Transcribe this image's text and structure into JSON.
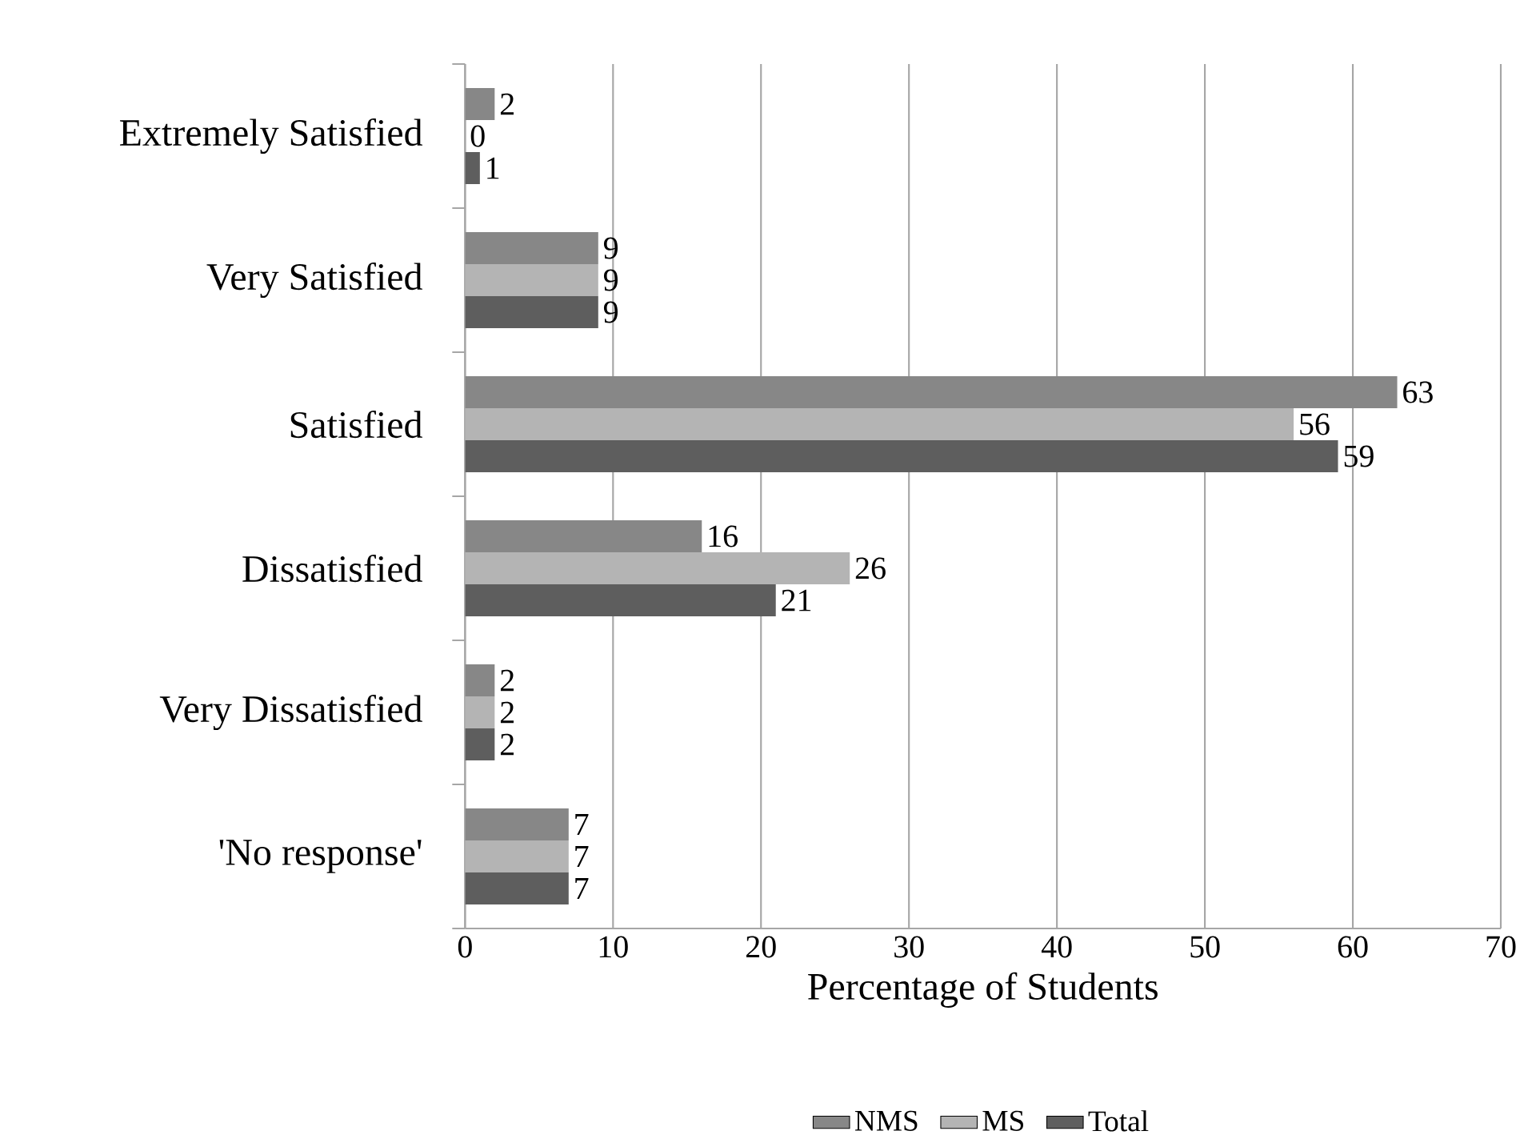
{
  "chart_data": {
    "type": "bar",
    "orientation": "horizontal",
    "xlabel": "Percentage of Students",
    "categories": [
      "Extremely Satisfied",
      "Very Satisfied",
      "Satisfied",
      "Dissatisfied",
      "Very Dissatisfied",
      "'No response'"
    ],
    "series": [
      {
        "name": "NMS",
        "color": "#878787",
        "values": [
          2,
          9,
          63,
          16,
          2,
          7
        ]
      },
      {
        "name": "MS",
        "color": "#b4b4b4",
        "values": [
          0,
          9,
          56,
          26,
          2,
          7
        ]
      },
      {
        "name": "Total",
        "color": "#5e5e5e",
        "values": [
          1,
          9,
          59,
          21,
          2,
          7
        ]
      }
    ],
    "xlim": [
      0,
      70
    ],
    "xticks": [
      0,
      10,
      20,
      30,
      40,
      50,
      60,
      70
    ],
    "grid": "x",
    "legend": "bottom",
    "data_labels": true
  }
}
